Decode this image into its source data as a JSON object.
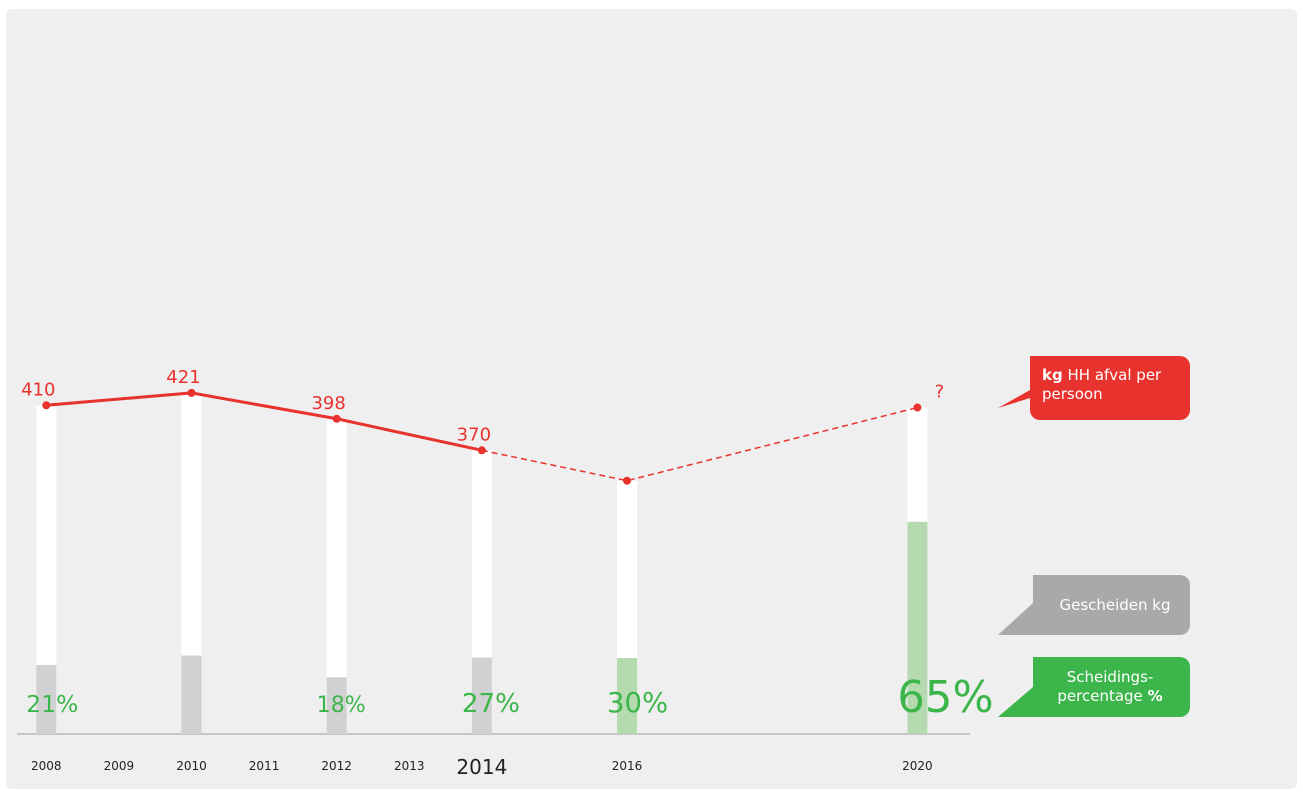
{
  "chart_data": {
    "type": "line-bar",
    "x": [
      2008,
      2010,
      2012,
      2014,
      2016,
      2020
    ],
    "xlim": [
      2007.5,
      2021
    ],
    "xticks": [
      2008,
      2009,
      2010,
      2011,
      2012,
      2013,
      2014,
      2016,
      2020
    ],
    "highlight_tick": 2014,
    "ylim": [
      118,
      762
    ],
    "series": [
      {
        "name": "kg HH afval per persoon",
        "name_bold": "kg",
        "name_rest": "HH afval per persoon",
        "color": "#e8322d",
        "values": [
          410,
          421,
          398,
          370,
          343,
          408
        ],
        "value_labels": [
          "410",
          "421",
          "398",
          "370",
          null,
          "?"
        ],
        "dashed_after": 2014
      },
      {
        "name": "Gescheiden kg",
        "color": "#a9a9ab",
        "bar_colors": [
          "#d1d1d3",
          "#d1d1d3",
          "#d1d1d3",
          "#d1d1d3",
          "#b5dab0",
          "#b5dab0"
        ]
      },
      {
        "name": "Scheidingspercentage %",
        "name_rest": "Scheidings-percentage",
        "name_bold": "%",
        "color": "#3cb54a",
        "values": [
          21,
          23,
          18,
          27,
          30,
          65
        ],
        "value_labels": [
          "21%",
          null,
          "18%",
          "27%",
          "30%",
          "65%"
        ]
      }
    ]
  }
}
